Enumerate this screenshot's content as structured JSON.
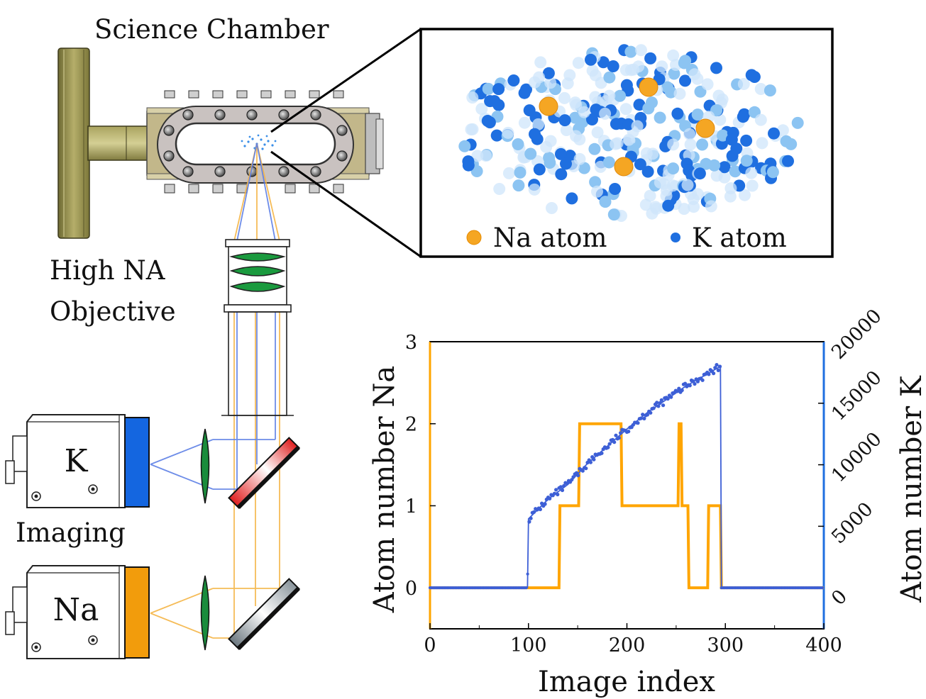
{
  "labels": {
    "science_chamber": "Science Chamber",
    "objective_line1": "High NA",
    "objective_line2": "Objective",
    "imaging": "Imaging",
    "camera_k": "K",
    "camera_na": "Na"
  },
  "inset": {
    "legend_na": "Na atom",
    "legend_k": "K atom",
    "na_count": 4
  },
  "colors": {
    "na": "#f5a623",
    "k": "#1f6fe0",
    "k_light": "#8cc4f2",
    "na_line": "#ffa500",
    "k_line": "#3d5fd6",
    "chamber": "#c9c2c0",
    "flange": "#8f8a4a",
    "lens": "#1a8c3c"
  },
  "chart_data": {
    "type": "line",
    "xlabel": "Image index",
    "ylabel_left": "Atom number Na",
    "ylabel_right": "Atom number K",
    "xlim": [
      0,
      400
    ],
    "ylim_left": [
      -0.5,
      3
    ],
    "ylim_right": [
      -3333,
      20000
    ],
    "x_ticks": [
      "0",
      "100",
      "200",
      "300",
      "400"
    ],
    "y_ticks_left": [
      "0",
      "1",
      "2",
      "3"
    ],
    "y_ticks_right": [
      "0",
      "5000",
      "10000",
      "15000",
      "20000"
    ],
    "series": [
      {
        "name": "Na",
        "axis": "left",
        "x": [
          0,
          131,
          132,
          151,
          152,
          194,
          195,
          252,
          253,
          255,
          256,
          262,
          263,
          282,
          283,
          295,
          296,
          400
        ],
        "y": [
          0,
          0,
          1,
          1,
          2,
          2,
          1,
          1,
          2,
          2,
          1,
          1,
          0,
          0,
          1,
          1,
          0,
          0
        ]
      },
      {
        "name": "K",
        "axis": "right",
        "x": [
          0,
          99,
          100,
          120,
          140,
          160,
          180,
          200,
          220,
          240,
          260,
          280,
          295,
          296,
          400
        ],
        "y": [
          0,
          0,
          5600,
          7200,
          8400,
          10100,
          11500,
          12900,
          14200,
          15300,
          16400,
          17300,
          18000,
          0,
          0
        ]
      }
    ]
  }
}
